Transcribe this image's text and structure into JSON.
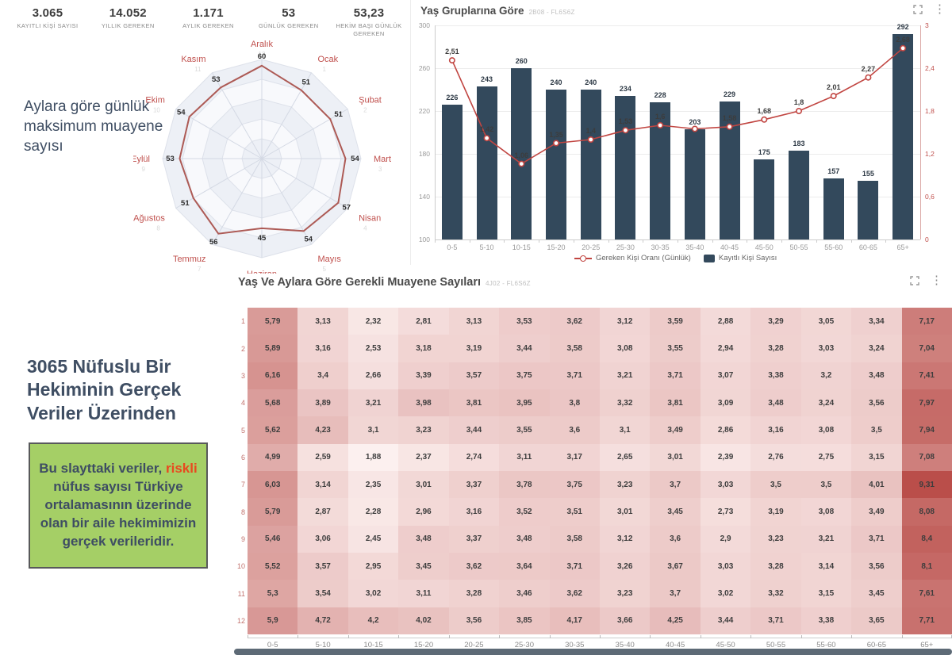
{
  "ui": {
    "kpis": [
      {
        "value": "3.065",
        "label": "KAYITLI KİŞİ SAYISI"
      },
      {
        "value": "14.052",
        "label": "YILLIK GEREKEN"
      },
      {
        "value": "1.171",
        "label": "AYLIK GEREKEN"
      },
      {
        "value": "53",
        "label": "GÜNLÜK GEREKEN"
      },
      {
        "value": "53,23",
        "label": "HEKİM BAŞI GÜNLÜK GEREKEN"
      }
    ],
    "left_note": "Aylara göre günlük maksimum muayene sayısı",
    "slide_heading": "3065 Nüfuslu Bir Hekiminin Gerçek Veriler Üzerinden",
    "green_box": {
      "pre": "Bu slayttaki veriler,",
      "highlight": "riskli",
      "post": "nüfus sayısı Türkiye ortalamasının üzerinde olan bir aile hekimimizin gerçek verileridir.",
      "bg": "#a5cf66",
      "highlight_color": "#e8491f",
      "text_color": "#3e4d63"
    },
    "accent_colors": {
      "bar": "#33495c",
      "line": "#c14541",
      "radar": "#ad5a55",
      "heat_low": "#fdf2f1",
      "heat_high": "#b94c48"
    }
  },
  "chart_data": [
    {
      "type": "radar",
      "title": "Aylara göre günlük maksimum muayene sayısı",
      "axis_max": 64,
      "points": [
        {
          "month": "Aralık",
          "month_no": 12,
          "value": 60
        },
        {
          "month": "Ocak",
          "month_no": 1,
          "value": 51
        },
        {
          "month": "Şubat",
          "month_no": 2,
          "value": 51
        },
        {
          "month": "Mart",
          "month_no": 3,
          "value": 54
        },
        {
          "month": "Nisan",
          "month_no": 4,
          "value": 57
        },
        {
          "month": "Mayıs",
          "month_no": 5,
          "value": 54
        },
        {
          "month": "Haziran",
          "month_no": 6,
          "value": 45
        },
        {
          "month": "Temmuz",
          "month_no": 7,
          "value": 56
        },
        {
          "month": "Ağustos",
          "month_no": 8,
          "value": 51
        },
        {
          "month": "Eylül",
          "month_no": 9,
          "value": 53
        },
        {
          "month": "Ekim",
          "month_no": 10,
          "value": 54
        },
        {
          "month": "Kasım",
          "month_no": 11,
          "value": 53
        }
      ]
    },
    {
      "type": "bar+line",
      "title": "Yaş Gruplarına Göre",
      "code": "2B08 - FL6S6Z",
      "categories": [
        "0-5",
        "5-10",
        "10-15",
        "15-20",
        "20-25",
        "25-30",
        "30-35",
        "35-40",
        "40-45",
        "45-50",
        "50-55",
        "55-60",
        "60-65",
        "65+"
      ],
      "series": [
        {
          "name": "Kayıtlı Kişi Sayısı",
          "type": "bar",
          "color": "#33495c",
          "values": [
            226,
            243,
            260,
            240,
            240,
            234,
            228,
            203,
            229,
            175,
            183,
            157,
            155,
            292
          ]
        },
        {
          "name": "Gereken Kişi Oranı (Günlük)",
          "type": "line",
          "color": "#c14541",
          "values": [
            2.51,
            1.42,
            1.06,
            1.35,
            1.4,
            1.53,
            1.6,
            1.55,
            1.58,
            1.68,
            1.8,
            2.01,
            2.27,
            2.68
          ],
          "labels": [
            "2,51",
            "1,42",
            "1,06",
            "1,35",
            "1,4",
            "1,53",
            "1,6",
            null,
            "1,58",
            "1,68",
            "1,8",
            "2,01",
            "2,27",
            "2,68"
          ]
        }
      ],
      "left_axis": {
        "labels": [
          "300",
          "260",
          "220",
          "180",
          "140",
          "100"
        ],
        "min": 100,
        "max": 300
      },
      "right_axis": {
        "labels": [
          "3",
          "2,4",
          "1,8",
          "1,2",
          "0,6",
          "0"
        ],
        "min": 0,
        "max": 3
      },
      "legend": [
        "Gereken Kişi Oranı (Günlük)",
        "Kayıtlı Kişi Sayısı"
      ]
    },
    {
      "type": "heatmap",
      "title": "Yaş Ve Aylara Göre Gerekli Muayene Sayıları",
      "code": "4J02 - FL6S6Z",
      "row_labels": [
        "1",
        "2",
        "3",
        "4",
        "5",
        "6",
        "7",
        "8",
        "9",
        "10",
        "11",
        "12"
      ],
      "col_labels": [
        "0-5",
        "5-10",
        "10-15",
        "15-20",
        "20-25",
        "25-30",
        "30-35",
        "35-40",
        "40-45",
        "45-50",
        "50-55",
        "55-60",
        "60-65",
        "65+"
      ],
      "rows": [
        [
          "5,79",
          "3,13",
          "2,32",
          "2,81",
          "3,13",
          "3,53",
          "3,62",
          "3,12",
          "3,59",
          "2,88",
          "3,29",
          "3,05",
          "3,34",
          "7,17"
        ],
        [
          "5,89",
          "3,16",
          "2,53",
          "3,18",
          "3,19",
          "3,44",
          "3,58",
          "3,08",
          "3,55",
          "2,94",
          "3,28",
          "3,03",
          "3,24",
          "7,04"
        ],
        [
          "6,16",
          "3,4",
          "2,66",
          "3,39",
          "3,57",
          "3,75",
          "3,71",
          "3,21",
          "3,71",
          "3,07",
          "3,38",
          "3,2",
          "3,48",
          "7,41"
        ],
        [
          "5,68",
          "3,89",
          "3,21",
          "3,98",
          "3,81",
          "3,95",
          "3,8",
          "3,32",
          "3,81",
          "3,09",
          "3,48",
          "3,24",
          "3,56",
          "7,97"
        ],
        [
          "5,62",
          "4,23",
          "3,1",
          "3,23",
          "3,44",
          "3,55",
          "3,6",
          "3,1",
          "3,49",
          "2,86",
          "3,16",
          "3,08",
          "3,5",
          "7,94"
        ],
        [
          "4,99",
          "2,59",
          "1,88",
          "2,37",
          "2,74",
          "3,11",
          "3,17",
          "2,65",
          "3,01",
          "2,39",
          "2,76",
          "2,75",
          "3,15",
          "7,08"
        ],
        [
          "6,03",
          "3,14",
          "2,35",
          "3,01",
          "3,37",
          "3,78",
          "3,75",
          "3,23",
          "3,7",
          "3,03",
          "3,5",
          "3,5",
          "4,01",
          "9,31"
        ],
        [
          "5,79",
          "2,87",
          "2,28",
          "2,96",
          "3,16",
          "3,52",
          "3,51",
          "3,01",
          "3,45",
          "2,73",
          "3,19",
          "3,08",
          "3,49",
          "8,08"
        ],
        [
          "5,46",
          "3,06",
          "2,45",
          "3,48",
          "3,37",
          "3,48",
          "3,58",
          "3,12",
          "3,6",
          "2,9",
          "3,23",
          "3,21",
          "3,71",
          "8,4"
        ],
        [
          "5,52",
          "3,57",
          "2,95",
          "3,45",
          "3,62",
          "3,64",
          "3,71",
          "3,26",
          "3,67",
          "3,03",
          "3,28",
          "3,14",
          "3,56",
          "8,1"
        ],
        [
          "5,3",
          "3,54",
          "3,02",
          "3,11",
          "3,28",
          "3,46",
          "3,62",
          "3,23",
          "3,7",
          "3,02",
          "3,32",
          "3,15",
          "3,45",
          "7,61"
        ],
        [
          "5,9",
          "4,72",
          "4,2",
          "4,02",
          "3,56",
          "3,85",
          "4,17",
          "3,66",
          "4,25",
          "3,44",
          "3,71",
          "3,38",
          "3,65",
          "7,71"
        ]
      ],
      "color_scale": {
        "min": 1.8,
        "max": 9.4,
        "low_color": "#fdf2f1",
        "high_color": "#b94c48"
      }
    }
  ]
}
